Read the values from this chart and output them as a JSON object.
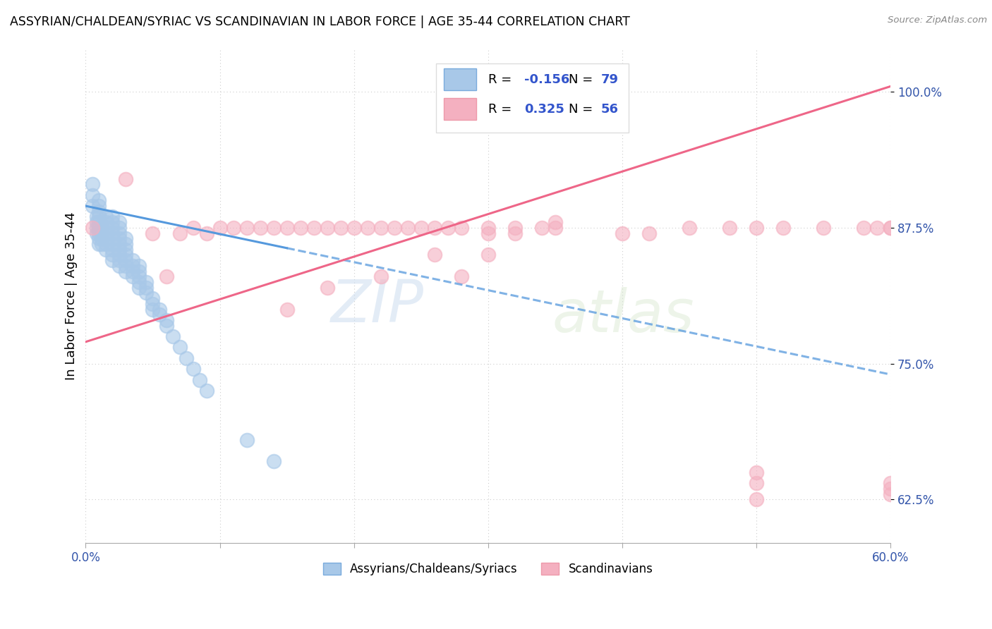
{
  "title": "ASSYRIAN/CHALDEAN/SYRIAC VS SCANDINAVIAN IN LABOR FORCE | AGE 35-44 CORRELATION CHART",
  "source": "Source: ZipAtlas.com",
  "ylabel": "In Labor Force | Age 35-44",
  "color_assyrian": "#a8c8e8",
  "color_scandinavian": "#f4b0c0",
  "color_line_assyrian": "#5599dd",
  "color_line_scandinavian": "#ee6688",
  "watermark_zip": "ZIP",
  "watermark_atlas": "atlas",
  "xlim": [
    0.0,
    0.6
  ],
  "ylim": [
    0.585,
    1.04
  ],
  "x_ticks": [
    0.0,
    0.1,
    0.2,
    0.3,
    0.4,
    0.5,
    0.6
  ],
  "y_ticks": [
    0.625,
    0.75,
    0.875,
    1.0
  ],
  "R_assyrian": -0.156,
  "N_assyrian": 79,
  "R_scandinavian": 0.325,
  "N_scandinavian": 56,
  "assyrian_x": [
    0.005,
    0.005,
    0.005,
    0.008,
    0.008,
    0.008,
    0.008,
    0.01,
    0.01,
    0.01,
    0.01,
    0.01,
    0.01,
    0.01,
    0.01,
    0.01,
    0.012,
    0.012,
    0.012,
    0.012,
    0.015,
    0.015,
    0.015,
    0.015,
    0.015,
    0.015,
    0.015,
    0.02,
    0.02,
    0.02,
    0.02,
    0.02,
    0.02,
    0.02,
    0.02,
    0.02,
    0.025,
    0.025,
    0.025,
    0.025,
    0.025,
    0.025,
    0.025,
    0.025,
    0.025,
    0.03,
    0.03,
    0.03,
    0.03,
    0.03,
    0.03,
    0.03,
    0.035,
    0.035,
    0.035,
    0.035,
    0.04,
    0.04,
    0.04,
    0.04,
    0.04,
    0.045,
    0.045,
    0.045,
    0.05,
    0.05,
    0.05,
    0.055,
    0.055,
    0.06,
    0.06,
    0.065,
    0.07,
    0.075,
    0.08,
    0.085,
    0.09,
    0.12,
    0.14
  ],
  "assyrian_y": [
    0.895,
    0.905,
    0.915,
    0.87,
    0.875,
    0.88,
    0.885,
    0.86,
    0.865,
    0.87,
    0.875,
    0.88,
    0.885,
    0.89,
    0.895,
    0.9,
    0.86,
    0.865,
    0.87,
    0.875,
    0.855,
    0.86,
    0.865,
    0.87,
    0.875,
    0.88,
    0.885,
    0.845,
    0.85,
    0.855,
    0.86,
    0.865,
    0.87,
    0.875,
    0.88,
    0.885,
    0.84,
    0.845,
    0.85,
    0.855,
    0.86,
    0.865,
    0.87,
    0.875,
    0.88,
    0.835,
    0.84,
    0.845,
    0.85,
    0.855,
    0.86,
    0.865,
    0.83,
    0.835,
    0.84,
    0.845,
    0.82,
    0.825,
    0.83,
    0.835,
    0.84,
    0.815,
    0.82,
    0.825,
    0.8,
    0.805,
    0.81,
    0.795,
    0.8,
    0.785,
    0.79,
    0.775,
    0.765,
    0.755,
    0.745,
    0.735,
    0.725,
    0.68,
    0.66
  ],
  "scandinavian_x": [
    0.005,
    0.03,
    0.05,
    0.06,
    0.07,
    0.08,
    0.09,
    0.1,
    0.11,
    0.12,
    0.13,
    0.14,
    0.15,
    0.16,
    0.17,
    0.18,
    0.19,
    0.2,
    0.21,
    0.22,
    0.23,
    0.24,
    0.25,
    0.26,
    0.27,
    0.28,
    0.3,
    0.32,
    0.34,
    0.35,
    0.28,
    0.3,
    0.32,
    0.15,
    0.18,
    0.22,
    0.26,
    0.3,
    0.35,
    0.4,
    0.42,
    0.45,
    0.48,
    0.5,
    0.52,
    0.55,
    0.58,
    0.59,
    0.6,
    0.6,
    0.5,
    0.5,
    0.5,
    0.6,
    0.6,
    0.6
  ],
  "scandinavian_y": [
    0.875,
    0.92,
    0.87,
    0.83,
    0.87,
    0.875,
    0.87,
    0.875,
    0.875,
    0.875,
    0.875,
    0.875,
    0.875,
    0.875,
    0.875,
    0.875,
    0.875,
    0.875,
    0.875,
    0.875,
    0.875,
    0.875,
    0.875,
    0.875,
    0.875,
    0.875,
    0.875,
    0.875,
    0.875,
    0.875,
    0.83,
    0.85,
    0.87,
    0.8,
    0.82,
    0.83,
    0.85,
    0.87,
    0.88,
    0.87,
    0.87,
    0.875,
    0.875,
    0.875,
    0.875,
    0.875,
    0.875,
    0.875,
    0.875,
    0.875,
    0.625,
    0.64,
    0.65,
    0.63,
    0.635,
    0.64
  ]
}
